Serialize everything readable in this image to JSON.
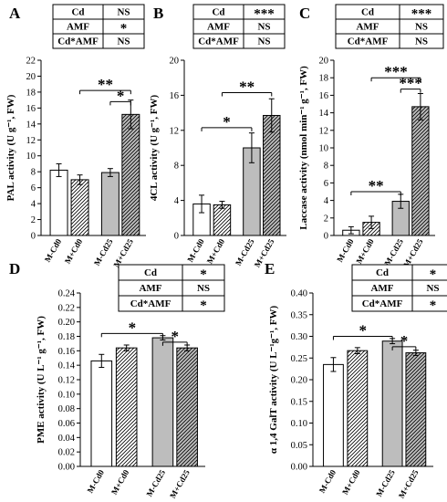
{
  "chart_data": [
    {
      "type": "bar",
      "panel": "A",
      "ylabel": "PAL activity (U g⁻¹, FW)",
      "ylim": [
        0,
        22
      ],
      "ticks": [
        "0",
        "2",
        "4",
        "6",
        "8",
        "10",
        "12",
        "14",
        "16",
        "18",
        "20",
        "22"
      ],
      "categories": [
        "M-Cd0",
        "M+Cd0",
        "M-Cd25",
        "M+Cd25"
      ],
      "values": [
        8.2,
        7.0,
        7.9,
        15.2
      ],
      "errors": [
        0.8,
        0.6,
        0.5,
        1.8
      ],
      "fills": [
        "white",
        "hatch",
        "gray",
        "hatch-gray"
      ],
      "table": [
        [
          "Cd",
          "NS"
        ],
        [
          "AMF",
          "*"
        ],
        [
          "Cd*AMF",
          "NS"
        ]
      ],
      "brackets": [
        {
          "from": 1,
          "to": 3,
          "y": 18.2,
          "label": "**"
        },
        {
          "from": 2,
          "to": 3,
          "y": 16.8,
          "label": "*"
        }
      ]
    },
    {
      "type": "bar",
      "panel": "B",
      "ylabel": "4CL activity (U g⁻¹, FW)",
      "ylim": [
        0,
        20
      ],
      "ticks": [
        "0",
        "4",
        "8",
        "12",
        "16",
        "20"
      ],
      "categories": [
        "M-Cd0",
        "M+Cd0",
        "M-Cd25",
        "M+Cd25"
      ],
      "values": [
        3.6,
        3.5,
        10.0,
        13.7
      ],
      "errors": [
        1.0,
        0.4,
        1.7,
        1.9
      ],
      "fills": [
        "white",
        "hatch",
        "gray",
        "hatch-gray"
      ],
      "table": [
        [
          "Cd",
          "***"
        ],
        [
          "AMF",
          "NS"
        ],
        [
          "Cd*AMF",
          "NS"
        ]
      ],
      "brackets": [
        {
          "from": 0,
          "to": 2,
          "y": 12.3,
          "label": "*"
        },
        {
          "from": 1,
          "to": 3,
          "y": 16.3,
          "label": "**"
        }
      ]
    },
    {
      "type": "bar",
      "panel": "C",
      "ylabel": "Laccase activity (nmol min⁻¹ g⁻¹, FW)",
      "ylim": [
        0,
        20
      ],
      "ticks": [
        "0",
        "2",
        "4",
        "6",
        "8",
        "10",
        "12",
        "14",
        "16",
        "18",
        "20"
      ],
      "categories": [
        "M-Cd0",
        "M+Cd0",
        "M-Cd25",
        "M+Cd25"
      ],
      "values": [
        0.6,
        1.5,
        3.9,
        14.7
      ],
      "errors": [
        0.4,
        0.7,
        0.8,
        1.5
      ],
      "fills": [
        "white",
        "hatch",
        "gray",
        "hatch-gray"
      ],
      "table": [
        [
          "Cd",
          "***"
        ],
        [
          "AMF",
          "NS"
        ],
        [
          "Cd*AMF",
          "NS"
        ]
      ],
      "brackets": [
        {
          "from": 0,
          "to": 2,
          "y": 5.0,
          "label": "**"
        },
        {
          "from": 2,
          "to": 3,
          "y": 16.7,
          "label": "***"
        },
        {
          "from": 1,
          "to": 3,
          "y": 18.0,
          "label": "***"
        }
      ]
    },
    {
      "type": "bar",
      "panel": "D",
      "ylabel": "PME activity (U L⁻¹ g⁻¹, FW)",
      "ylim": [
        0,
        0.24
      ],
      "ticks": [
        "0.00",
        "0.02",
        "0.04",
        "0.06",
        "0.08",
        "0.10",
        "0.12",
        "0.14",
        "0.16",
        "0.18",
        "0.20",
        "0.22",
        "0.24"
      ],
      "categories": [
        "M-Cd0",
        "M+Cd0",
        "M-Cd25",
        "M+Cd25"
      ],
      "values": [
        0.146,
        0.164,
        0.178,
        0.164
      ],
      "errors": [
        0.009,
        0.004,
        0.003,
        0.004
      ],
      "fills": [
        "white",
        "hatch",
        "gray",
        "hatch-gray"
      ],
      "table": [
        [
          "Cd",
          "*"
        ],
        [
          "AMF",
          "NS"
        ],
        [
          "Cd*AMF",
          "*"
        ]
      ],
      "brackets": [
        {
          "from": 0,
          "to": 2,
          "y": 0.184,
          "label": "*"
        },
        {
          "from": 2,
          "to": 3,
          "y": 0.172,
          "label": "*"
        }
      ]
    },
    {
      "type": "bar",
      "panel": "E",
      "ylabel": "α 1,4 GalT activity (U L⁻¹g⁻¹, FW)",
      "ylim": [
        0,
        0.4
      ],
      "ticks": [
        "0.00",
        "0.05",
        "0.10",
        "0.15",
        "0.20",
        "0.25",
        "0.30",
        "0.35",
        "0.40"
      ],
      "categories": [
        "M-Cd0",
        "M+Cd0",
        "M-Cd25",
        "M+Cd25"
      ],
      "values": [
        0.235,
        0.267,
        0.289,
        0.262
      ],
      "errors": [
        0.016,
        0.007,
        0.006,
        0.006
      ],
      "fills": [
        "white",
        "hatch",
        "gray",
        "hatch-gray"
      ],
      "table": [
        [
          "Cd",
          "*"
        ],
        [
          "AMF",
          "NS"
        ],
        [
          "Cd*AMF",
          "*"
        ]
      ],
      "brackets": [
        {
          "from": 0,
          "to": 2,
          "y": 0.3,
          "label": "*"
        },
        {
          "from": 2,
          "to": 3,
          "y": 0.276,
          "label": "*"
        }
      ]
    }
  ]
}
